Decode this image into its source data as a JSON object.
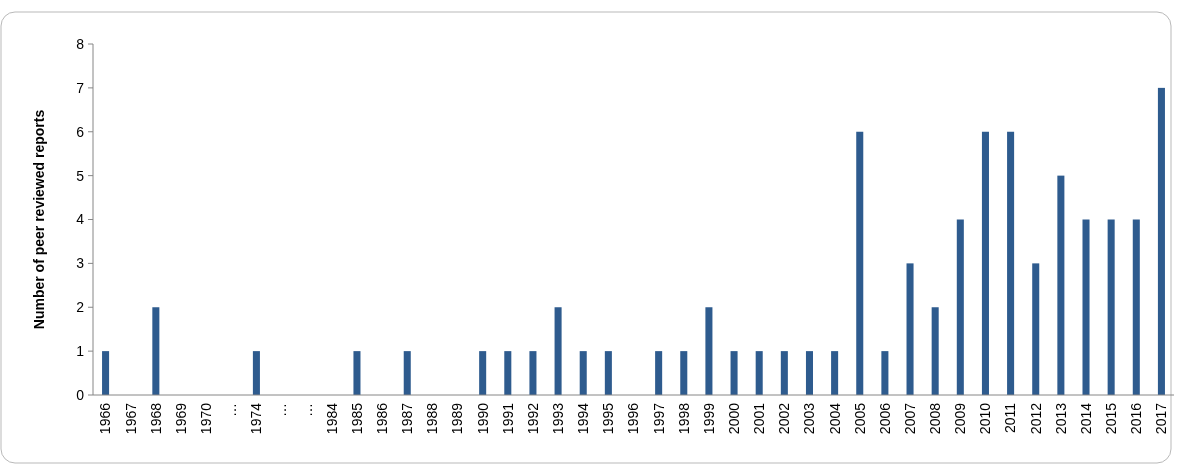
{
  "chart_data": {
    "type": "bar",
    "ylabel": "Number of peer reviewed reports",
    "categories": [
      "1966",
      "1967",
      "1968",
      "1969",
      "1970",
      "…",
      "1974",
      "…",
      "…",
      "1984",
      "1985",
      "1986",
      "1987",
      "1988",
      "1989",
      "1990",
      "1991",
      "1992",
      "1993",
      "1994",
      "1995",
      "1996",
      "1997",
      "1998",
      "1999",
      "2000",
      "2001",
      "2002",
      "2003",
      "2004",
      "2005",
      "2006",
      "2007",
      "2008",
      "2009",
      "2010",
      "2011",
      "2012",
      "2013",
      "2014",
      "2015",
      "2016",
      "2017"
    ],
    "values": [
      1,
      0,
      2,
      0,
      0,
      0,
      1,
      0,
      0,
      0,
      1,
      0,
      1,
      0,
      0,
      1,
      1,
      1,
      2,
      1,
      1,
      0,
      1,
      1,
      2,
      1,
      1,
      1,
      1,
      1,
      6,
      1,
      3,
      2,
      4,
      6,
      6,
      3,
      5,
      4,
      4,
      4,
      7
    ],
    "color": "#2e5b8e",
    "ylim": [
      0,
      8
    ],
    "yticks": [
      0,
      1,
      2,
      3,
      4,
      5,
      6,
      7,
      8
    ],
    "grid": false
  }
}
